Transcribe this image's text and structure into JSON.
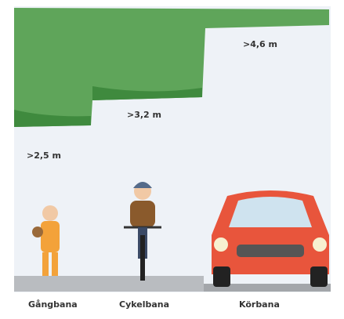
{
  "heights": [
    ">4,6 m",
    ">3,2 m",
    ">2,5 m"
  ],
  "lanes": [
    "Gångbana",
    "Cykelbana",
    "Körbana"
  ]
}
